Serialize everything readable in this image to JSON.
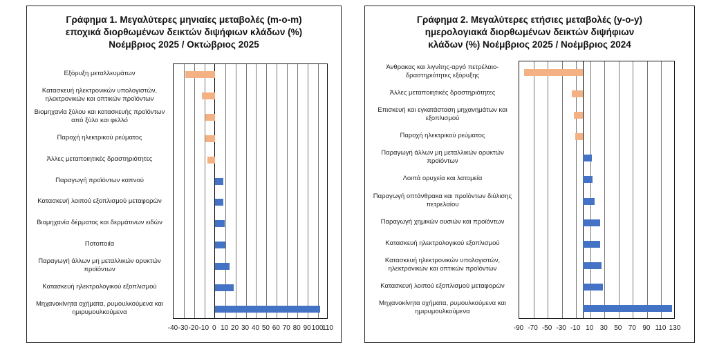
{
  "colors": {
    "negative": "#F4B183",
    "positive": "#4472C4"
  },
  "chart_data": [
    {
      "type": "bar",
      "orientation": "horizontal",
      "title": [
        "Γράφημα 1. Μεγαλύτερες μηνιαίες μεταβολές (m-o-m)",
        "εποχικά διορθωμένων δεικτών διψήφιων κλάδων (%)",
        "Νοέμβριος 2025 / Οκτώβριος 2025"
      ],
      "categories": [
        "Εξόρυξη μεταλλευμάτων",
        "Κατασκευή ηλεκτρονικών υπολογιστών, ηλεκτρονικών και οπτικών προϊόντων",
        "Βιομηχανία ξύλου και κατασκευής προϊόντων από ξύλο και φελλό",
        "Παροχή ηλεκτρικού ρεύματος",
        "Άλλες μεταποιητικές δραστηριότητες",
        "Παραγωγή προϊόντων καπνού",
        "Κατασκευή λοιπού εξοπλισμού μεταφορών",
        "Βιομηχανία δέρματος και δερμάτινων ειδών",
        "Ποτοποιία",
        "Παραγωγή άλλων μη μεταλλικών ορυκτών προϊόντων",
        "Κατασκευή ηλεκτρολογικού εξοπλισμού",
        "Μηχανοκίνητα οχήματα, ρυμουλκούμενα και ημιρυμουλκούμενα"
      ],
      "values": [
        -28.5,
        -12.5,
        -9.5,
        -9.5,
        -7,
        8,
        8.5,
        9.5,
        10,
        14,
        18,
        102
      ],
      "xlim": [
        -40,
        110
      ],
      "xticks": [
        "-40",
        "-30",
        "-20",
        "-10",
        "0",
        "10",
        "20",
        "30",
        "40",
        "50",
        "60",
        "70",
        "80",
        "90",
        "100",
        "110"
      ],
      "grid": true
    },
    {
      "type": "bar",
      "orientation": "horizontal",
      "title": [
        "Γράφημα 2. Μεγαλύτερες ετήσιες μεταβολές (y-o-y)",
        "ημερολογιακά διορθωμένων δεικτών διψήφιων",
        "κλάδων (%)  Νοέμβριος 2025 / Νοέμβριος  2024"
      ],
      "categories": [
        "Άνθρακας και λιγνίτης-αργό πετρέλαιο-δραστηριότητες εξόρυξης",
        "Άλλες μεταποιητικές δραστηριότητες",
        "Επισκευή και εγκατάσταση μηχανημάτων και εξοπλισμού",
        "Παροχή ηλεκτρικού ρεύματος",
        "Παραγωγή άλλων μη μεταλλικών ορυκτών προϊόντων",
        "Λοιπά ορυχεία και λατομεία",
        "Παραγωγή οπτάνθρακα και προϊόντων διύλισης πετρελαίου",
        "Παραγωγή χημικών ουσιών και προϊόντων",
        "Κατασκευή ηλεκτρολογικού εξοπλισμού",
        "Κατασκευή ηλεκτρονικών υπολογιστών, ηλεκτρονικών και οπτικών προϊόντων",
        "Κατασκευή λοιπού εξοπλισμού μεταφορών",
        "Μηχανοκίνητα οχήματα, ρυμουλκούμενα και ημιρυμουλκούμενα"
      ],
      "values": [
        -83.5,
        -16,
        -13,
        -11,
        12,
        13,
        16,
        24,
        24,
        26,
        28,
        125
      ],
      "xlim": [
        -90,
        130
      ],
      "xticks": [
        "-90",
        "-70",
        "-50",
        "-30",
        "-10",
        "10",
        "30",
        "50",
        "70",
        "90",
        "110",
        "130"
      ],
      "grid": true
    }
  ]
}
